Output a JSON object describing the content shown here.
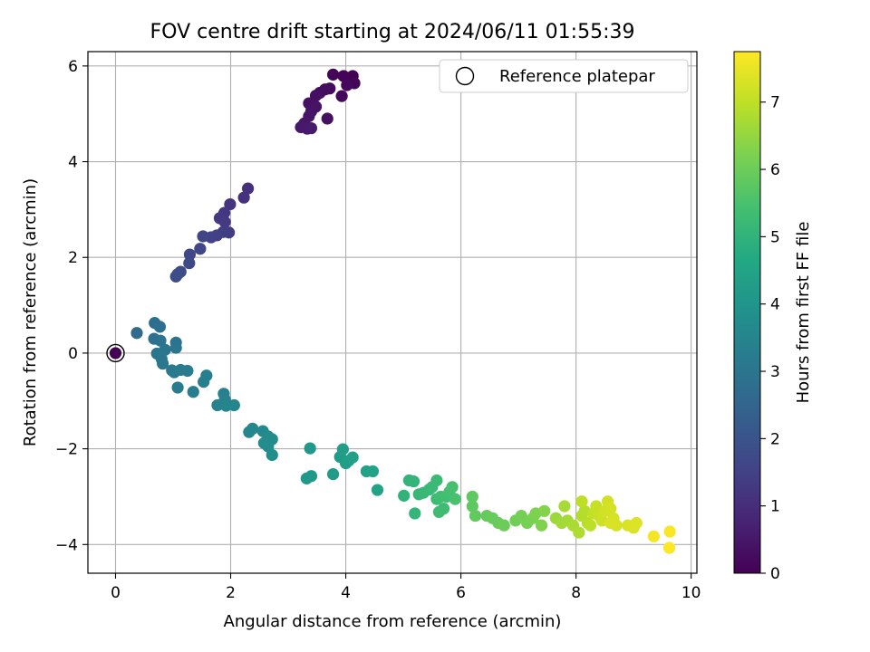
{
  "chart_data": {
    "type": "scatter",
    "title": "FOV centre drift starting at 2024/06/11 01:55:39",
    "xlabel": "Angular distance from reference (arcmin)",
    "ylabel": "Rotation from reference (arcmin)",
    "xlim": [
      -0.48,
      10.1
    ],
    "ylim": [
      -4.6,
      6.3
    ],
    "xticks": [
      0,
      2,
      4,
      6,
      8,
      10
    ],
    "yticks": [
      -4,
      -2,
      0,
      2,
      4,
      6
    ],
    "xtick_labels": [
      "0",
      "2",
      "4",
      "6",
      "8",
      "10"
    ],
    "ytick_labels": [
      "−4",
      "−2",
      "0",
      "2",
      "4",
      "6"
    ],
    "grid": true,
    "legend": {
      "position": "top-right",
      "entries": [
        "Reference platepar"
      ]
    },
    "reference_point": {
      "x": 0,
      "y": 0
    },
    "colorbar": {
      "label": "Hours from first FF file",
      "range": [
        0,
        7.75
      ],
      "ticks": [
        0,
        1,
        2,
        3,
        4,
        5,
        6,
        7
      ],
      "tick_labels": [
        "0",
        "1",
        "2",
        "3",
        "4",
        "5",
        "6",
        "7"
      ],
      "colormap": "viridis"
    },
    "points": [
      [
        4.12,
        5.79,
        0.03
      ],
      [
        3.78,
        5.82,
        0.06
      ],
      [
        3.96,
        5.79,
        0.09
      ],
      [
        4.15,
        5.64,
        0.12
      ],
      [
        4.02,
        5.6,
        0.15
      ],
      [
        3.93,
        5.37,
        0.18
      ],
      [
        3.72,
        5.53,
        0.21
      ],
      [
        3.64,
        5.51,
        0.24
      ],
      [
        3.55,
        5.44,
        0.27
      ],
      [
        3.48,
        5.38,
        0.3
      ],
      [
        3.68,
        4.9,
        0.33
      ],
      [
        3.36,
        5.22,
        0.36
      ],
      [
        3.48,
        5.15,
        0.39
      ],
      [
        3.4,
        5.05,
        0.42
      ],
      [
        3.36,
        4.95,
        0.45
      ],
      [
        3.28,
        4.8,
        0.48
      ],
      [
        3.22,
        4.72,
        0.51
      ],
      [
        3.33,
        4.69,
        0.54
      ],
      [
        3.4,
        4.7,
        0.57
      ],
      [
        2.3,
        3.44,
        1.05
      ],
      [
        2.23,
        3.25,
        1.1
      ],
      [
        1.99,
        3.11,
        1.15
      ],
      [
        1.89,
        2.93,
        1.2
      ],
      [
        1.81,
        2.82,
        1.25
      ],
      [
        1.9,
        2.74,
        1.3
      ],
      [
        1.97,
        2.52,
        1.35
      ],
      [
        1.87,
        2.53,
        1.4
      ],
      [
        1.76,
        2.46,
        1.45
      ],
      [
        1.66,
        2.42,
        1.5
      ],
      [
        1.52,
        2.44,
        1.55
      ],
      [
        1.47,
        2.18,
        1.6
      ],
      [
        1.29,
        2.06,
        1.65
      ],
      [
        1.28,
        1.88,
        1.7
      ],
      [
        1.13,
        1.7,
        1.75
      ],
      [
        1.08,
        1.65,
        1.8
      ],
      [
        1.05,
        1.6,
        1.85
      ],
      [
        0.37,
        0.42,
        2.7
      ],
      [
        0.68,
        0.63,
        2.75
      ],
      [
        0.77,
        0.55,
        2.8
      ],
      [
        0.67,
        0.3,
        2.85
      ],
      [
        0.78,
        0.26,
        2.9
      ],
      [
        1.05,
        0.22,
        2.95
      ],
      [
        1.05,
        0.11,
        3.0
      ],
      [
        0.86,
        0.07,
        3.02
      ],
      [
        0.72,
        -0.01,
        3.05
      ],
      [
        0.8,
        -0.12,
        3.08
      ],
      [
        0.82,
        -0.22,
        3.1
      ],
      [
        0.98,
        -0.36,
        3.12
      ],
      [
        1.02,
        -0.4,
        3.15
      ],
      [
        1.13,
        -0.35,
        3.18
      ],
      [
        1.25,
        -0.37,
        3.2
      ],
      [
        1.08,
        -0.72,
        3.23
      ],
      [
        1.35,
        -0.81,
        3.26
      ],
      [
        1.53,
        -0.6,
        3.3
      ],
      [
        1.58,
        -0.47,
        3.33
      ],
      [
        1.88,
        -0.85,
        3.36
      ],
      [
        1.9,
        -0.97,
        3.4
      ],
      [
        1.77,
        -1.09,
        3.44
      ],
      [
        1.92,
        -1.1,
        3.47
      ],
      [
        2.06,
        -1.09,
        3.5
      ],
      [
        2.32,
        -1.65,
        3.55
      ],
      [
        2.38,
        -1.58,
        3.58
      ],
      [
        2.56,
        -1.63,
        3.62
      ],
      [
        2.65,
        -1.74,
        3.66
      ],
      [
        2.72,
        -1.8,
        3.69
      ],
      [
        2.58,
        -1.88,
        3.72
      ],
      [
        2.65,
        -1.95,
        3.75
      ],
      [
        2.72,
        -2.13,
        3.78
      ],
      [
        3.38,
        -1.99,
        4.1
      ],
      [
        3.4,
        -2.57,
        4.13
      ],
      [
        3.32,
        -2.62,
        4.16
      ],
      [
        3.78,
        -2.53,
        4.2
      ],
      [
        3.9,
        -2.17,
        4.24
      ],
      [
        3.95,
        -2.01,
        4.27
      ],
      [
        4.0,
        -2.3,
        4.3
      ],
      [
        4.05,
        -2.25,
        4.33
      ],
      [
        4.12,
        -2.18,
        4.37
      ],
      [
        4.36,
        -2.47,
        4.41
      ],
      [
        4.47,
        -2.47,
        4.44
      ],
      [
        4.55,
        -2.86,
        4.48
      ],
      [
        5.01,
        -2.98,
        5.0
      ],
      [
        5.1,
        -2.66,
        5.03
      ],
      [
        5.18,
        -2.68,
        5.06
      ],
      [
        5.2,
        -3.35,
        5.09
      ],
      [
        5.27,
        -2.95,
        5.12
      ],
      [
        5.35,
        -2.92,
        5.15
      ],
      [
        5.45,
        -2.85,
        5.18
      ],
      [
        5.5,
        -2.8,
        5.21
      ],
      [
        5.58,
        -2.66,
        5.24
      ],
      [
        5.58,
        -3.05,
        5.27
      ],
      [
        5.62,
        -3.32,
        5.3
      ],
      [
        5.7,
        -3.25,
        5.33
      ],
      [
        5.65,
        -3.0,
        5.36
      ],
      [
        5.75,
        -3.0,
        5.39
      ],
      [
        5.8,
        -2.9,
        5.42
      ],
      [
        5.85,
        -2.8,
        5.45
      ],
      [
        5.9,
        -3.05,
        5.48
      ],
      [
        6.2,
        -3.0,
        5.8
      ],
      [
        6.2,
        -3.2,
        5.83
      ],
      [
        6.25,
        -3.4,
        5.86
      ],
      [
        6.45,
        -3.4,
        5.9
      ],
      [
        6.55,
        -3.45,
        5.93
      ],
      [
        6.65,
        -3.55,
        5.96
      ],
      [
        6.75,
        -3.6,
        6.0
      ],
      [
        6.95,
        -3.5,
        6.05
      ],
      [
        7.05,
        -3.4,
        6.1
      ],
      [
        7.15,
        -3.55,
        6.14
      ],
      [
        7.25,
        -3.45,
        6.18
      ],
      [
        7.3,
        -3.35,
        6.22
      ],
      [
        7.4,
        -3.6,
        6.26
      ],
      [
        7.45,
        -3.3,
        6.3
      ],
      [
        7.65,
        -3.45,
        6.6
      ],
      [
        7.75,
        -3.55,
        6.64
      ],
      [
        7.85,
        -3.5,
        6.68
      ],
      [
        7.8,
        -3.2,
        6.72
      ],
      [
        7.95,
        -3.6,
        6.76
      ],
      [
        8.05,
        -3.75,
        6.8
      ],
      [
        8.1,
        -3.4,
        6.84
      ],
      [
        8.15,
        -3.3,
        6.88
      ],
      [
        8.2,
        -3.55,
        6.92
      ],
      [
        8.25,
        -3.6,
        6.96
      ],
      [
        8.1,
        -3.1,
        7.0
      ],
      [
        8.3,
        -3.35,
        7.04
      ],
      [
        8.35,
        -3.2,
        7.08
      ],
      [
        8.4,
        -3.4,
        7.12
      ],
      [
        8.45,
        -3.5,
        7.16
      ],
      [
        8.5,
        -3.3,
        7.2
      ],
      [
        8.55,
        -3.1,
        7.22
      ],
      [
        8.6,
        -3.25,
        7.24
      ],
      [
        8.65,
        -3.45,
        7.26
      ],
      [
        8.7,
        -3.6,
        7.28
      ],
      [
        8.6,
        -3.55,
        7.3
      ],
      [
        8.9,
        -3.6,
        7.32
      ],
      [
        9.0,
        -3.65,
        7.34
      ],
      [
        9.05,
        -3.55,
        7.36
      ],
      [
        9.35,
        -3.83,
        7.65
      ],
      [
        9.63,
        -3.73,
        7.7
      ],
      [
        9.62,
        -4.07,
        7.74
      ]
    ]
  }
}
